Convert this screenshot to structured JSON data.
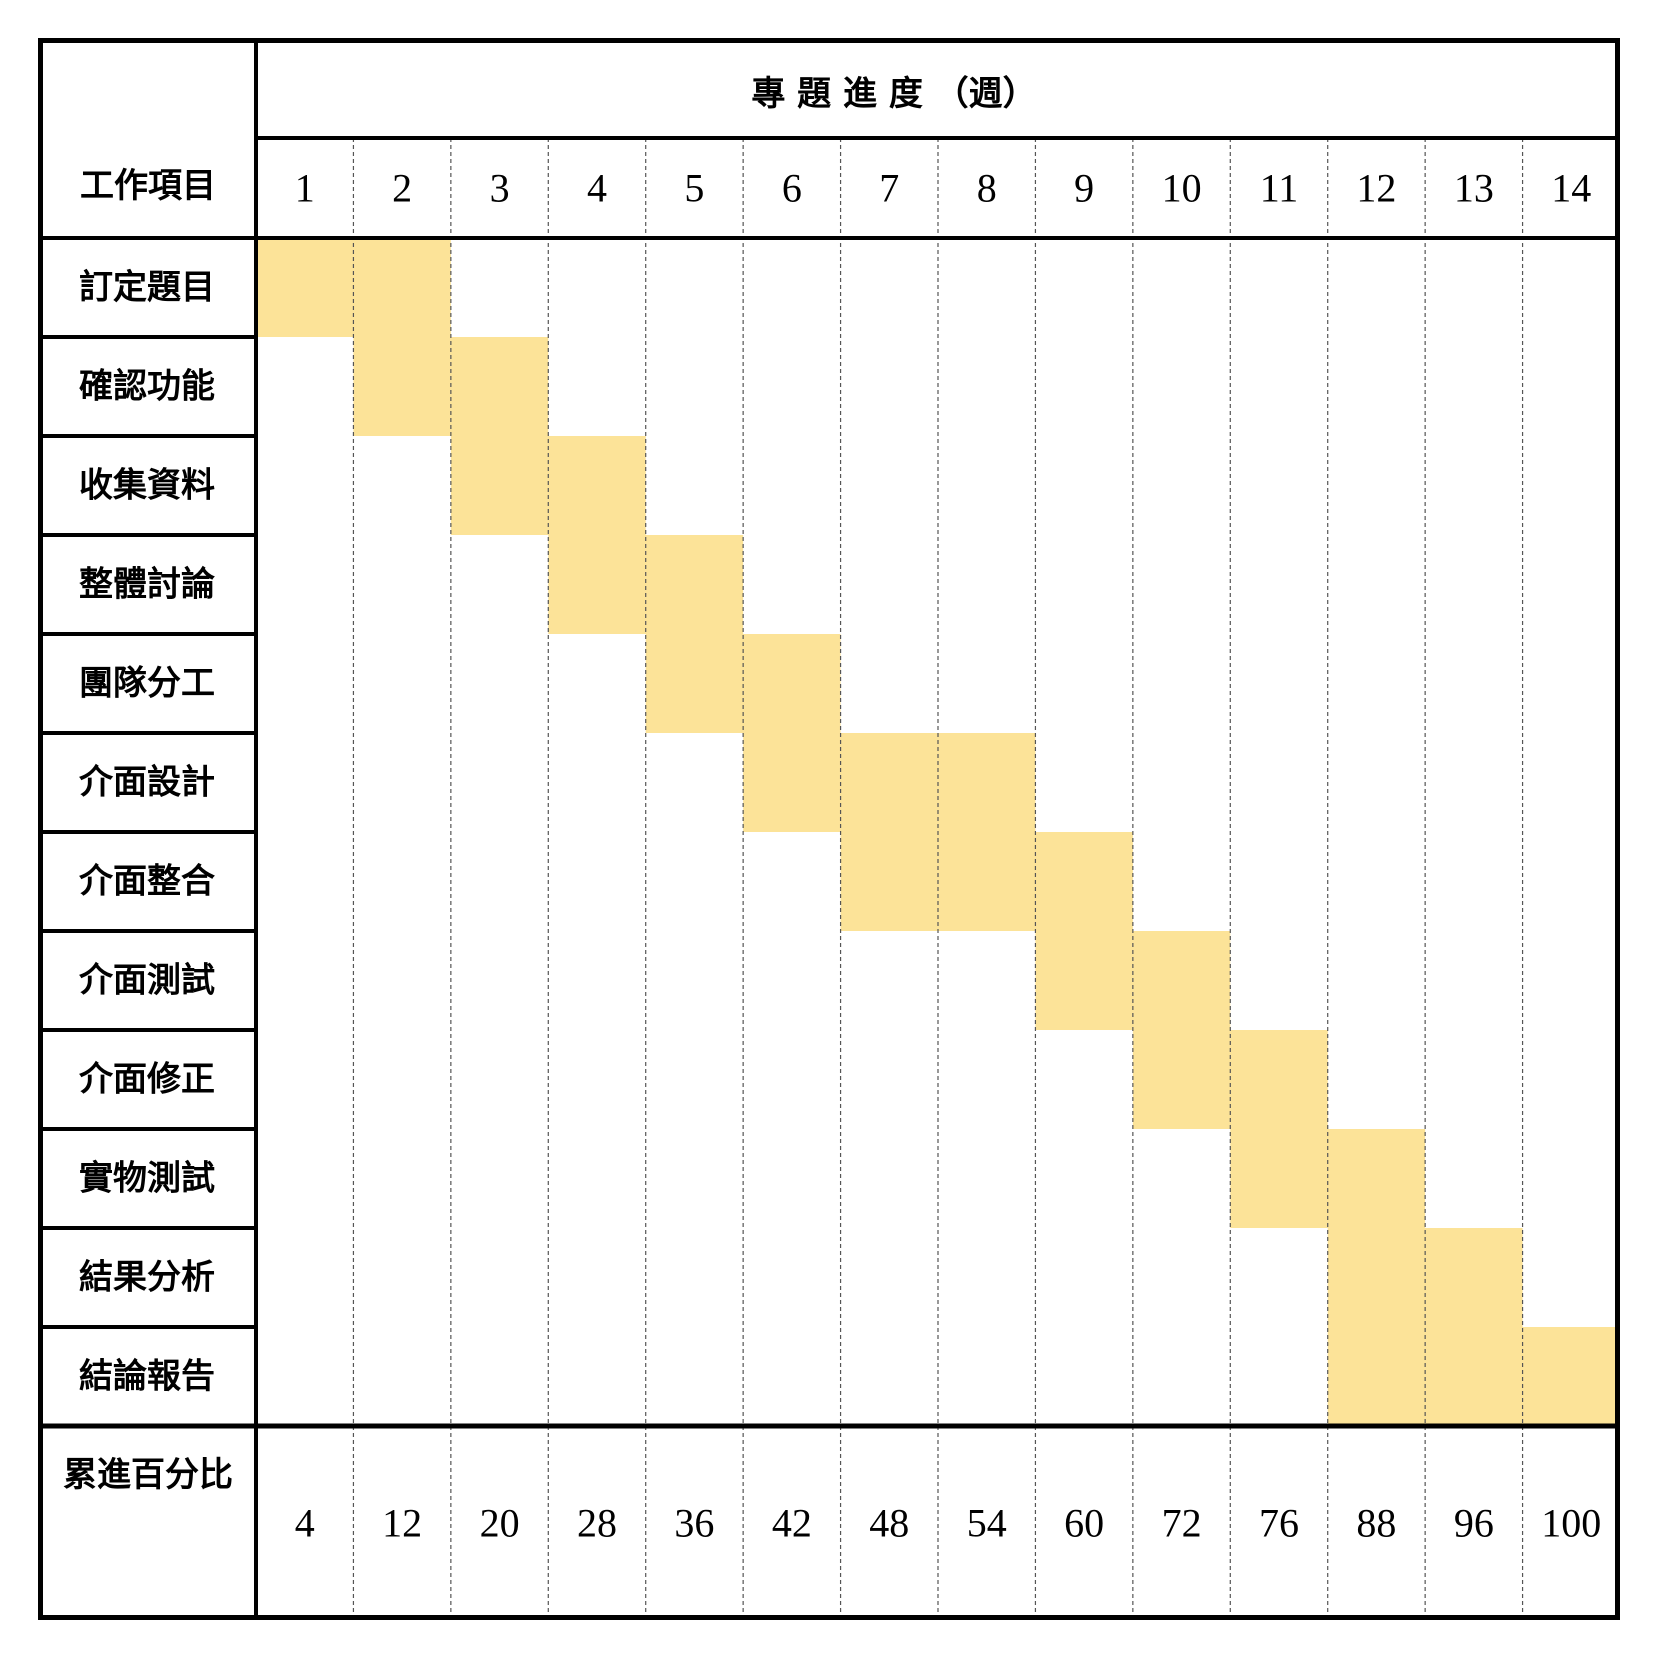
{
  "colors": {
    "bar": "#fce398",
    "border": "#000000",
    "grid": "#555555",
    "background": "#ffffff"
  },
  "chart_data": {
    "type": "table",
    "title": "專 題 進 度 （週）",
    "task_header": "工作項目",
    "weeks": [
      "1",
      "2",
      "3",
      "4",
      "5",
      "6",
      "7",
      "8",
      "9",
      "10",
      "11",
      "12",
      "13",
      "14"
    ],
    "tasks": [
      {
        "name": "訂定題目",
        "start_week": 1,
        "end_week": 2
      },
      {
        "name": "確認功能",
        "start_week": 2,
        "end_week": 3
      },
      {
        "name": "收集資料",
        "start_week": 3,
        "end_week": 4
      },
      {
        "name": "整體討論",
        "start_week": 4,
        "end_week": 5
      },
      {
        "name": "團隊分工",
        "start_week": 5,
        "end_week": 6
      },
      {
        "name": "介面設計",
        "start_week": 6,
        "end_week": 8
      },
      {
        "name": "介面整合",
        "start_week": 7,
        "end_week": 9
      },
      {
        "name": "介面測試",
        "start_week": 9,
        "end_week": 10
      },
      {
        "name": "介面修正",
        "start_week": 10,
        "end_week": 11
      },
      {
        "name": "實物測試",
        "start_week": 11,
        "end_week": 12
      },
      {
        "name": "結果分析",
        "start_week": 12,
        "end_week": 13
      },
      {
        "name": "結論報告",
        "start_week": 12,
        "end_week": 14
      }
    ],
    "cumulative_label": "累進百分比",
    "cumulative_percent": [
      "4",
      "12",
      "20",
      "28",
      "36",
      "42",
      "48",
      "54",
      "60",
      "72",
      "76",
      "88",
      "96",
      "100"
    ]
  }
}
